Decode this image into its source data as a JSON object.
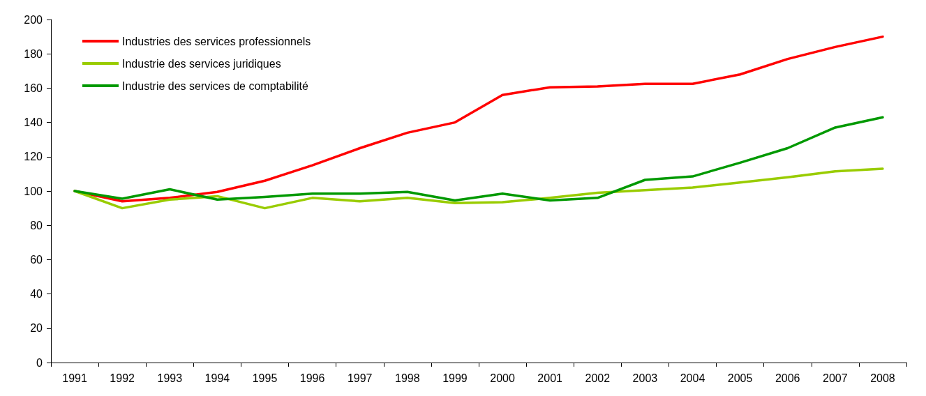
{
  "chart_data": {
    "type": "line",
    "categories": [
      "1991",
      "1992",
      "1993",
      "1994",
      "1995",
      "1996",
      "1997",
      "1998",
      "1999",
      "2000",
      "2001",
      "2002",
      "2003",
      "2004",
      "2005",
      "2006",
      "2007",
      "2008"
    ],
    "series": [
      {
        "name": "Industries des services professionnels",
        "color": "#ff0000",
        "values": [
          100,
          94,
          96,
          99.5,
          106,
          115,
          125,
          134,
          140,
          156,
          160.5,
          161,
          162.5,
          162.5,
          168,
          177,
          184,
          190
        ]
      },
      {
        "name": "Industrie des services juridiques",
        "color": "#99cc00",
        "values": [
          100,
          90,
          95,
          97,
          90,
          96,
          94,
          96,
          93,
          93.5,
          96,
          99,
          100.5,
          102,
          105,
          108,
          111.5,
          113
        ]
      },
      {
        "name": "Industrie des services de comptabilité",
        "color": "#009900",
        "values": [
          100,
          95.5,
          101,
          95,
          96.5,
          98.5,
          98.5,
          99.5,
          94.5,
          98.5,
          94.5,
          96,
          106.5,
          108.5,
          116.5,
          125,
          137,
          143
        ]
      }
    ],
    "ylim": [
      0,
      200
    ],
    "yticks": [
      0,
      20,
      40,
      60,
      80,
      100,
      120,
      140,
      160,
      180,
      200
    ],
    "grid": false,
    "legend": "top left",
    "marker": "none",
    "line_style": "solid"
  }
}
